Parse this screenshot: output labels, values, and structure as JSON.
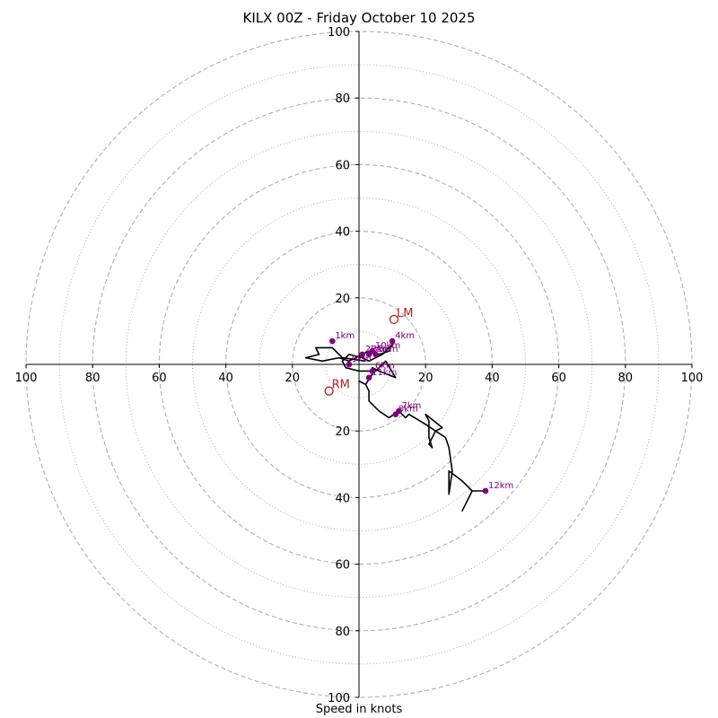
{
  "chart_data": {
    "type": "scatter",
    "subtype": "hodograph",
    "title": "KILX 00Z - Friday October 10 2025",
    "xlabel": "Speed in knots",
    "ylabel": "",
    "xlim": [
      -100,
      100
    ],
    "ylim": [
      -100,
      100
    ],
    "rings": {
      "dashed": [
        20,
        40,
        60,
        80,
        100
      ],
      "dotted": [
        10,
        30,
        50,
        70,
        90
      ]
    },
    "x_ticks": [
      {
        "value": -100,
        "label": "100"
      },
      {
        "value": -80,
        "label": "80"
      },
      {
        "value": -60,
        "label": "60"
      },
      {
        "value": -40,
        "label": "40"
      },
      {
        "value": -20,
        "label": "20"
      },
      {
        "value": 20,
        "label": "20"
      },
      {
        "value": 40,
        "label": "40"
      },
      {
        "value": 60,
        "label": "60"
      },
      {
        "value": 80,
        "label": "80"
      },
      {
        "value": 100,
        "label": "100"
      }
    ],
    "y_ticks": [
      {
        "value": 100,
        "label": "100"
      },
      {
        "value": 80,
        "label": "80"
      },
      {
        "value": 60,
        "label": "60"
      },
      {
        "value": 40,
        "label": "40"
      },
      {
        "value": 20,
        "label": "20"
      },
      {
        "value": -20,
        "label": "20"
      },
      {
        "value": -40,
        "label": "40"
      },
      {
        "value": -60,
        "label": "60"
      },
      {
        "value": -80,
        "label": "80"
      },
      {
        "value": -100,
        "label": "100"
      }
    ],
    "hodograph_trace": [
      [
        2,
        1
      ],
      [
        -5,
        2
      ],
      [
        -8,
        5
      ],
      [
        -13,
        5
      ],
      [
        -12,
        3
      ],
      [
        -16,
        2
      ],
      [
        -11,
        1
      ],
      [
        -6,
        2
      ],
      [
        -3,
        1
      ],
      [
        1,
        3
      ],
      [
        3,
        4
      ],
      [
        6,
        3
      ],
      [
        9,
        4
      ],
      [
        10,
        6
      ],
      [
        7,
        3
      ],
      [
        3,
        1
      ],
      [
        1,
        2
      ],
      [
        -3,
        3
      ],
      [
        -5,
        1
      ],
      [
        -4,
        -1
      ],
      [
        0,
        -2
      ],
      [
        5,
        -2
      ],
      [
        8,
        1
      ],
      [
        11,
        -4
      ],
      [
        6,
        -2
      ],
      [
        4,
        -1
      ],
      [
        4,
        -3
      ],
      [
        2,
        -6
      ],
      [
        0,
        -5
      ],
      [
        2,
        -6
      ],
      [
        3,
        -8
      ],
      [
        3,
        -11
      ],
      [
        6,
        -14
      ],
      [
        9,
        -16
      ],
      [
        12,
        -14
      ],
      [
        14,
        -16
      ],
      [
        15,
        -15
      ],
      [
        20,
        -18
      ],
      [
        23,
        -20
      ],
      [
        25,
        -19
      ],
      [
        20,
        -15
      ],
      [
        21,
        -17
      ],
      [
        21,
        -22
      ],
      [
        22,
        -25
      ],
      [
        21,
        -24
      ],
      [
        23,
        -20
      ],
      [
        26,
        -22
      ],
      [
        27,
        -25
      ],
      [
        28,
        -32
      ],
      [
        27,
        -39
      ],
      [
        27,
        -37
      ],
      [
        27,
        -32
      ],
      [
        31,
        -35
      ],
      [
        34,
        -38
      ],
      [
        32,
        -42
      ],
      [
        31,
        -44
      ],
      [
        32,
        -42
      ],
      [
        34,
        -38
      ],
      [
        38,
        -38
      ]
    ],
    "height_markers": [
      {
        "label": "1km",
        "u": -8,
        "v": 7
      },
      {
        "label": "2km",
        "u": 1,
        "v": 3
      },
      {
        "label": "3km",
        "u": 3,
        "v": 3
      },
      {
        "label": "4km",
        "u": 10,
        "v": 7
      },
      {
        "label": "5km",
        "u": 5,
        "v": 3
      },
      {
        "label": "6km",
        "u": 4,
        "v": -2
      },
      {
        "label": "7km",
        "u": 12,
        "v": -14
      },
      {
        "label": "8km",
        "u": 11,
        "v": -15
      },
      {
        "label": "9km",
        "u": -3,
        "v": 0
      },
      {
        "label": "10km",
        "u": 4,
        "v": 4
      },
      {
        "label": "11km",
        "u": 3,
        "v": -4
      },
      {
        "label": "12km",
        "u": 38,
        "v": -38
      }
    ],
    "storm_motion": [
      {
        "label": "LM",
        "u": 10.5,
        "v": 13.5
      },
      {
        "label": "RM",
        "u": -9,
        "v": -8
      }
    ],
    "colors": {
      "trace": "#000000",
      "height_marker": "#800080",
      "storm_motion": "#b22222",
      "rings": "#b0b0b0"
    }
  }
}
